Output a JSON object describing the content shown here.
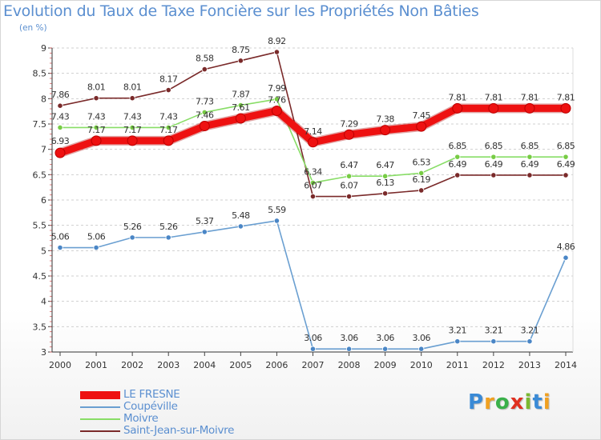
{
  "chart_data": {
    "type": "line",
    "title": "Evolution du Taux de Taxe Foncière sur les Propriétés Non Bâties",
    "subtitle": "(en %)",
    "xlabel": "",
    "ylabel": "",
    "categories": [
      "2000",
      "2001",
      "2002",
      "2003",
      "2004",
      "2005",
      "2006",
      "2007",
      "2008",
      "2009",
      "2010",
      "2011",
      "2012",
      "2013",
      "2014"
    ],
    "ylim": [
      3,
      9
    ],
    "yticks": [
      "3",
      "3.5",
      "4",
      "4.5",
      "5",
      "5.5",
      "6",
      "6.5",
      "7",
      "7.5",
      "8",
      "8.5",
      "9"
    ],
    "grid": "horizontal-dashed",
    "legend_position": "bottom-left",
    "series": [
      {
        "name": "LE FRESNE",
        "color": "#ee1111",
        "marker": "#ee1111",
        "bold": true,
        "values": [
          6.93,
          7.17,
          7.17,
          7.17,
          7.46,
          7.61,
          7.76,
          7.14,
          7.29,
          7.38,
          7.45,
          7.81,
          7.81,
          7.81,
          7.81
        ],
        "labels": [
          "6.93",
          "7.17",
          "7.17",
          "7.17",
          "7.46",
          "7.61",
          "7.76",
          "7.14",
          "7.29",
          "7.38",
          "7.45",
          "7.81",
          "7.81",
          "7.81",
          "7.81"
        ]
      },
      {
        "name": "Coupéville",
        "color": "#6a9fd1",
        "marker": "#4a86c6",
        "bold": false,
        "values": [
          5.06,
          5.06,
          5.26,
          5.26,
          5.37,
          5.48,
          5.59,
          3.06,
          3.06,
          3.06,
          3.06,
          3.21,
          3.21,
          3.21,
          4.86
        ],
        "labels": [
          "5.06",
          "5.06",
          "5.26",
          "5.26",
          "5.37",
          "5.48",
          "5.59",
          "3.06",
          "3.06",
          "3.06",
          "3.06",
          "3.21",
          "3.21",
          "3.21",
          "4.86"
        ]
      },
      {
        "name": "Moivre",
        "color": "#88dd66",
        "marker": "#77cc44",
        "bold": false,
        "values": [
          7.43,
          7.43,
          7.43,
          7.43,
          7.73,
          7.87,
          7.99,
          6.34,
          6.47,
          6.47,
          6.53,
          6.85,
          6.85,
          6.85,
          6.85
        ],
        "labels": [
          "7.43",
          "7.43",
          "7.43",
          "7.43",
          "7.73",
          "7.87",
          "7.99",
          "6.34",
          "6.47",
          "6.47",
          "6.53",
          "6.85",
          "6.85",
          "6.85",
          "6.85"
        ]
      },
      {
        "name": "Saint-Jean-sur-Moivre",
        "color": "#7a2a2a",
        "marker": "#7a2a2a",
        "bold": false,
        "values": [
          7.86,
          8.01,
          8.01,
          8.17,
          8.58,
          8.75,
          8.92,
          6.07,
          6.07,
          6.13,
          6.19,
          6.49,
          6.49,
          6.49,
          6.49
        ],
        "labels": [
          "7.86",
          "8.01",
          "8.01",
          "8.17",
          "8.58",
          "8.75",
          "8.92",
          "6.07",
          "6.07",
          "6.13",
          "6.19",
          "6.49",
          "6.49",
          "6.49",
          "6.49"
        ]
      }
    ]
  },
  "logo": {
    "text": "Proxiti",
    "letters": [
      "P",
      "r",
      "o",
      "x",
      "i",
      "t",
      "i"
    ],
    "colors": [
      "#3a8ad6",
      "#f0a020",
      "#3ab04a",
      "#e03020",
      "#7ab830",
      "#3a8ad6",
      "#f0a020"
    ]
  }
}
